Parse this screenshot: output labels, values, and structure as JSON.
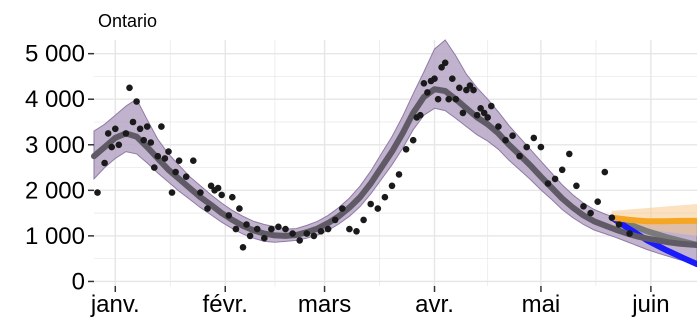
{
  "chart_data": {
    "type": "line",
    "title": "Ontario",
    "xlabel": "",
    "ylabel": "",
    "x_ticks": [
      "janv.",
      "févr.",
      "mars",
      "avr.",
      "mai",
      "juin"
    ],
    "x_tick_days": [
      0,
      31,
      59,
      90,
      120,
      151
    ],
    "y_ticks": [
      "0",
      "1 000",
      "2 000",
      "3 000",
      "4 000",
      "5 000"
    ],
    "y_tick_values": [
      0,
      1000,
      2000,
      3000,
      4000,
      5000
    ],
    "xlim": [
      -6,
      164
    ],
    "ylim": [
      -100,
      5300
    ],
    "grid": true,
    "legend": "none",
    "colors": {
      "band": "#b6a5c6",
      "band_edge": "#8f7ba5",
      "trend": "#5f5a66",
      "points": "#1a1a1a",
      "scenario_high": "#f5a623",
      "scenario_mid": "#7a7a7a",
      "scenario_low": "#1a1aff",
      "grid": "#e6e6e6"
    },
    "series": [
      {
        "kind": "trend",
        "x": [
          -6,
          -3,
          0,
          3,
          6,
          9,
          12,
          15,
          18,
          21,
          24,
          27,
          30,
          33,
          36,
          39,
          42,
          45,
          48,
          51,
          54,
          57,
          60,
          63,
          66,
          69,
          72,
          75,
          78,
          81,
          84,
          87,
          90,
          93,
          96,
          99,
          102,
          105,
          108,
          111,
          114,
          117,
          120,
          123,
          126,
          129,
          132,
          135,
          138,
          141,
          144,
          147,
          150,
          153,
          156,
          159,
          162,
          164
        ],
        "values": [
          2750,
          2950,
          3150,
          3250,
          3180,
          2950,
          2700,
          2450,
          2250,
          2050,
          1850,
          1680,
          1500,
          1350,
          1220,
          1120,
          1050,
          1010,
          1000,
          1020,
          1080,
          1160,
          1280,
          1430,
          1620,
          1850,
          2150,
          2500,
          2850,
          3250,
          3700,
          4050,
          4220,
          4180,
          4000,
          3800,
          3600,
          3450,
          3250,
          3000,
          2780,
          2550,
          2300,
          2060,
          1820,
          1620,
          1450,
          1320,
          1230,
          1140,
          1060,
          990,
          940,
          900,
          860,
          830,
          810,
          800
        ]
      },
      {
        "kind": "band_lower",
        "x": [
          -6,
          -3,
          0,
          3,
          6,
          9,
          12,
          15,
          18,
          21,
          24,
          27,
          30,
          33,
          36,
          39,
          42,
          45,
          48,
          51,
          54,
          57,
          60,
          63,
          66,
          69,
          72,
          75,
          78,
          81,
          84,
          87,
          90,
          93,
          96,
          99,
          102,
          105,
          108,
          111,
          114,
          117,
          120,
          123,
          126,
          129,
          132,
          135,
          138,
          141,
          144,
          147,
          150,
          153,
          156,
          159,
          162,
          164
        ],
        "values": [
          2250,
          2500,
          2700,
          2850,
          2800,
          2600,
          2380,
          2180,
          1980,
          1800,
          1620,
          1460,
          1300,
          1160,
          1040,
          950,
          880,
          860,
          880,
          900,
          950,
          1020,
          1120,
          1260,
          1430,
          1640,
          1920,
          2240,
          2560,
          2920,
          3330,
          3650,
          3800,
          3750,
          3580,
          3400,
          3220,
          3080,
          2900,
          2660,
          2450,
          2240,
          2010,
          1800,
          1580,
          1400,
          1250,
          1130,
          1050,
          970,
          880,
          790,
          700,
          620,
          550,
          480,
          420,
          380
        ]
      },
      {
        "kind": "band_upper",
        "x": [
          -6,
          -3,
          0,
          3,
          6,
          9,
          12,
          15,
          18,
          21,
          24,
          27,
          30,
          33,
          36,
          39,
          42,
          45,
          48,
          51,
          54,
          57,
          60,
          63,
          66,
          69,
          72,
          75,
          78,
          81,
          84,
          87,
          90,
          93,
          96,
          99,
          102,
          105,
          108,
          111,
          114,
          117,
          120,
          123,
          126,
          129,
          132,
          135,
          138,
          141,
          144,
          147,
          150,
          153,
          156,
          159,
          162,
          164
        ],
        "values": [
          3300,
          3450,
          3650,
          3850,
          4000,
          3550,
          3120,
          2800,
          2550,
          2300,
          2100,
          1900,
          1720,
          1560,
          1430,
          1320,
          1250,
          1200,
          1150,
          1160,
          1230,
          1320,
          1450,
          1620,
          1830,
          2090,
          2420,
          2800,
          3180,
          3620,
          4120,
          4600,
          5100,
          5300,
          4950,
          4550,
          4250,
          4000,
          3720,
          3420,
          3160,
          2900,
          2640,
          2380,
          2120,
          1900,
          1720,
          1580,
          1480,
          1400,
          1340,
          1330,
          1320,
          1310,
          1300,
          1300,
          1300,
          1300
        ]
      },
      {
        "kind": "points",
        "x": [
          -5,
          -3,
          -2,
          -1,
          0,
          1,
          3,
          4,
          5,
          6,
          7,
          8,
          9,
          10,
          11,
          12,
          13,
          14,
          15,
          16,
          17,
          18,
          20,
          22,
          24,
          26,
          27,
          28,
          29,
          30,
          32,
          33,
          34,
          35,
          36,
          37,
          38,
          40,
          42,
          44,
          46,
          48,
          50,
          52,
          54,
          56,
          58,
          60,
          62,
          64,
          66,
          68,
          70,
          72,
          74,
          76,
          78,
          80,
          82,
          84,
          85,
          86,
          87,
          88,
          89,
          90,
          91,
          92,
          93,
          94,
          95,
          96,
          97,
          98,
          99,
          100,
          101,
          102,
          103,
          104,
          105,
          106,
          108,
          110,
          112,
          114,
          116,
          118,
          120,
          122,
          124,
          126,
          128,
          130,
          132,
          134,
          136,
          138,
          140,
          142,
          145
        ],
        "values": [
          1950,
          2600,
          3250,
          2950,
          3350,
          3000,
          3250,
          4250,
          3500,
          3950,
          3350,
          3100,
          3400,
          3050,
          2500,
          2750,
          3400,
          2700,
          2850,
          1950,
          2400,
          2650,
          2300,
          2650,
          1950,
          1600,
          2100,
          2000,
          2050,
          1900,
          1450,
          1850,
          1150,
          1600,
          750,
          1250,
          1000,
          1150,
          950,
          1150,
          1200,
          1150,
          1050,
          900,
          1050,
          1000,
          1100,
          1150,
          1350,
          1600,
          1150,
          1100,
          1350,
          1700,
          1600,
          1850,
          2100,
          2350,
          2900,
          3100,
          3600,
          3650,
          4350,
          4150,
          4400,
          4450,
          4000,
          4700,
          4800,
          4000,
          4450,
          4000,
          4250,
          3700,
          4200,
          4300,
          4200,
          3650,
          3800,
          3700,
          3600,
          3850,
          3400,
          3100,
          3200,
          2750,
          2950,
          3150,
          2950,
          2150,
          2250,
          2450,
          2800,
          2100,
          1650,
          1500,
          1750,
          2400,
          1400,
          1250,
          1050
        ]
      },
      {
        "kind": "scenario_high",
        "x": [
          140,
          145,
          150,
          155,
          160,
          164
        ],
        "values": [
          1400,
          1350,
          1320,
          1320,
          1330,
          1330
        ]
      },
      {
        "kind": "scenario_mid",
        "x": [
          140,
          145,
          150,
          155,
          160,
          164
        ],
        "values": [
          1400,
          1250,
          1100,
          980,
          880,
          800
        ]
      },
      {
        "kind": "scenario_low",
        "x": [
          140,
          145,
          150,
          155,
          160,
          164
        ],
        "values": [
          1400,
          1150,
          900,
          700,
          520,
          380
        ]
      }
    ]
  }
}
